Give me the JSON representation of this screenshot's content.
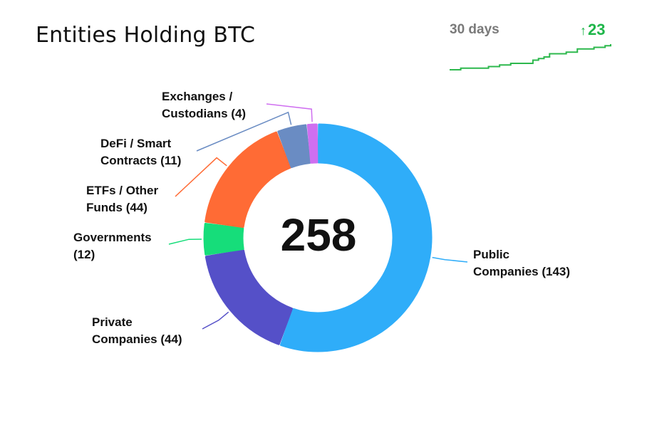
{
  "title": "Entities Holding BTC",
  "sparkline": {
    "period_label": "30 days",
    "change_arrow": "↑",
    "change_value": "23",
    "color": "#2db84d",
    "values": [
      0,
      0,
      1,
      1,
      1,
      1,
      1,
      2,
      2,
      3,
      3,
      4,
      4,
      4,
      4,
      6,
      7,
      8,
      10,
      10,
      10,
      11,
      11,
      13,
      13,
      13,
      14,
      14,
      15,
      16
    ]
  },
  "chart_data": {
    "type": "pie",
    "title": "Entities Holding BTC",
    "total": "258",
    "slices": [
      {
        "lines": [
          "Public",
          "Companies (143)"
        ],
        "value": 143,
        "color": "#2fadf9"
      },
      {
        "lines": [
          "Private",
          "Companies (44)"
        ],
        "value": 44,
        "color": "#5550c8"
      },
      {
        "lines": [
          "Governments",
          "(12)"
        ],
        "value": 12,
        "color": "#16dd7a"
      },
      {
        "lines": [
          "ETFs / Other",
          "Funds (44)"
        ],
        "value": 44,
        "color": "#ff6b35"
      },
      {
        "lines": [
          "DeFi / Smart",
          "Contracts (11)"
        ],
        "value": 11,
        "color": "#6a8cc3"
      },
      {
        "lines": [
          "Exchanges /",
          "Custodians (4)"
        ],
        "value": 4,
        "color": "#cf6ff0"
      }
    ]
  }
}
